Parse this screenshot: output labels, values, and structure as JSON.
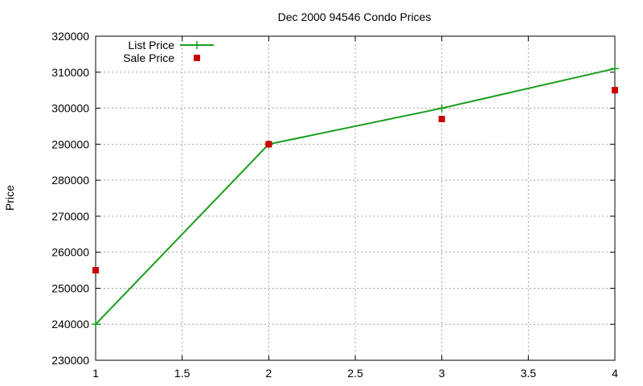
{
  "chart_data": {
    "type": "line",
    "title": "Dec 2000 94546 Condo Prices",
    "xlabel": "",
    "ylabel": "Price",
    "xlim": [
      1,
      4
    ],
    "ylim": [
      230000,
      320000
    ],
    "x_ticks": [
      "1",
      "1.5",
      "2",
      "2.5",
      "3",
      "3.5",
      "4"
    ],
    "y_ticks": [
      "230000",
      "240000",
      "250000",
      "260000",
      "270000",
      "280000",
      "290000",
      "300000",
      "310000",
      "320000"
    ],
    "grid": true,
    "legend_position": "top-left",
    "series": [
      {
        "name": "List Price",
        "style": "linespoints",
        "marker": "plus",
        "color": "#1a9e1a",
        "x": [
          1,
          2,
          3,
          4
        ],
        "y": [
          240000,
          290000,
          300000,
          311000
        ]
      },
      {
        "name": "Sale Price",
        "style": "points",
        "marker": "square",
        "color": "#cc0000",
        "x": [
          1,
          2,
          3,
          4
        ],
        "y": [
          255000,
          290000,
          297000,
          305000
        ]
      }
    ]
  }
}
